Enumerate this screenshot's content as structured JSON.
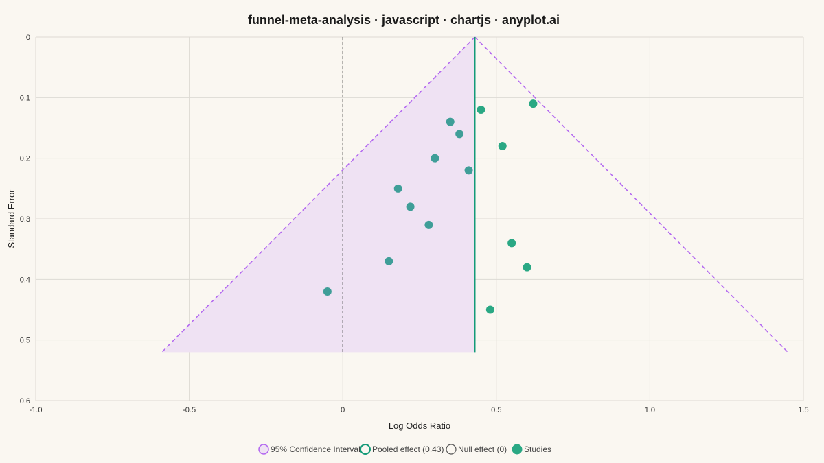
{
  "chart_data": {
    "type": "scatter",
    "title": "funnel-meta-analysis · javascript · chartjs · anyplot.ai",
    "xlabel": "Log Odds Ratio",
    "ylabel": "Standard Error",
    "xlim": [
      -1.0,
      1.5
    ],
    "ylim": [
      0,
      0.6
    ],
    "y_reversed": true,
    "x_ticks": [
      "-1.0",
      "-0.5",
      "0",
      "0.5",
      "1.0",
      "1.5"
    ],
    "y_ticks": [
      "0",
      "0.1",
      "0.2",
      "0.3",
      "0.4",
      "0.5",
      "0.6"
    ],
    "grid": true,
    "legend_position": "bottom",
    "pooled_effect": 0.43,
    "null_effect": 0,
    "funnel_max_se": 0.52,
    "series": [
      {
        "name": "Studies",
        "points": [
          {
            "x": 0.62,
            "y": 0.11
          },
          {
            "x": 0.45,
            "y": 0.12
          },
          {
            "x": 0.35,
            "y": 0.14
          },
          {
            "x": 0.38,
            "y": 0.16
          },
          {
            "x": 0.52,
            "y": 0.18
          },
          {
            "x": 0.3,
            "y": 0.2
          },
          {
            "x": 0.41,
            "y": 0.22
          },
          {
            "x": 0.18,
            "y": 0.25
          },
          {
            "x": 0.22,
            "y": 0.28
          },
          {
            "x": 0.28,
            "y": 0.31
          },
          {
            "x": 0.55,
            "y": 0.34
          },
          {
            "x": 0.15,
            "y": 0.37
          },
          {
            "x": 0.6,
            "y": 0.38
          },
          {
            "x": -0.05,
            "y": 0.42
          },
          {
            "x": 0.48,
            "y": 0.45
          }
        ]
      }
    ],
    "legend": [
      {
        "label": "95% Confidence Interval",
        "kind": "ci"
      },
      {
        "label": "Pooled effect (0.43)",
        "kind": "pooled"
      },
      {
        "label": "Null effect (0)",
        "kind": "null"
      },
      {
        "label": "Studies",
        "kind": "studies"
      }
    ],
    "colors": {
      "ci_line": "#b266f0",
      "ci_fill": "#efe2f3",
      "pooled": "#139a78",
      "null": "#555555",
      "study_left": "#3f9e98",
      "study_right": "#2aa884",
      "grid": "#dddad4",
      "axis": "#cccccc"
    }
  }
}
